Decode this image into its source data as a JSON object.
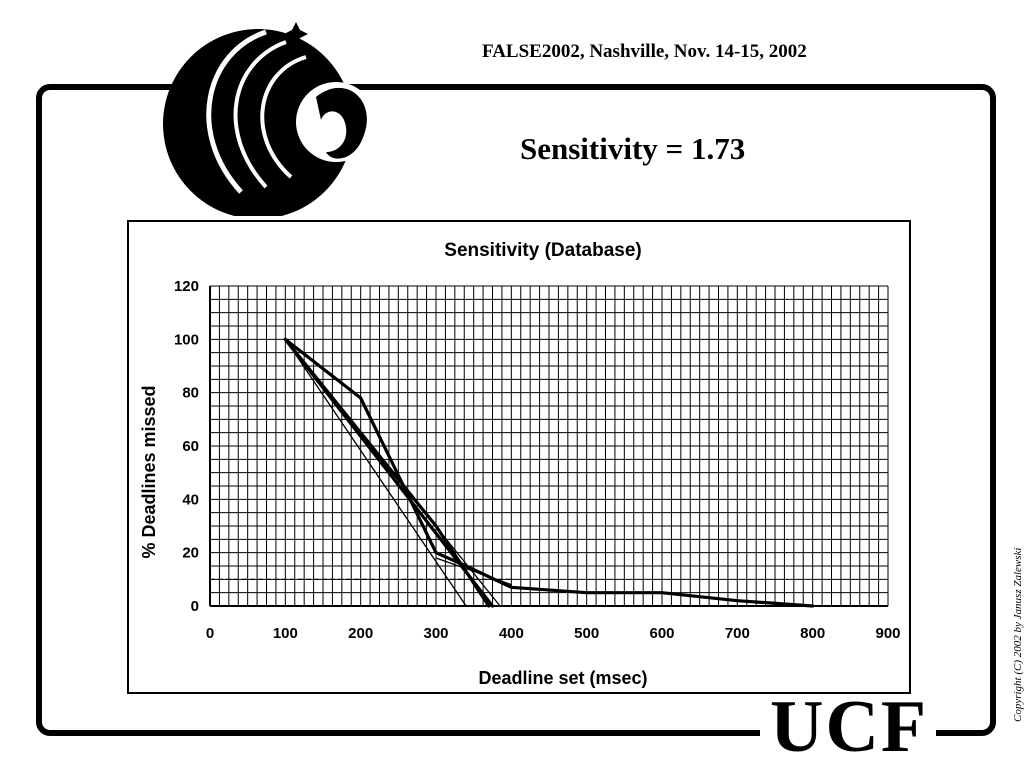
{
  "header": {
    "conference": "FALSE2002, Nashville,  Nov. 14-15, 2002",
    "slide_title": "Sensitivity = 1.73"
  },
  "footer": {
    "logo_text": "UCF",
    "copyright": "Copyright (C) 2002 by Janusz Zalewski"
  },
  "chart_data": {
    "type": "line",
    "title": "Sensitivity (Database)",
    "xlabel": "Deadline set (msec)",
    "ylabel": "% Deadlines missed",
    "xlim": [
      0,
      900
    ],
    "ylim": [
      0,
      120
    ],
    "xticks": [
      0,
      100,
      200,
      300,
      400,
      500,
      600,
      700,
      800,
      900
    ],
    "yticks": [
      0,
      20,
      40,
      60,
      80,
      100,
      120
    ],
    "grid": true,
    "series": [
      {
        "style": "thick",
        "x": [
          100,
          200,
          300,
          340,
          400,
          500,
          600,
          700,
          800
        ],
        "y": [
          100,
          78,
          20,
          15,
          7,
          5,
          5,
          2,
          0
        ]
      },
      {
        "style": "thick",
        "x": [
          100,
          200,
          300,
          370
        ],
        "y": [
          100,
          65,
          30,
          0
        ]
      },
      {
        "style": "thick",
        "x": [
          100,
          375
        ],
        "y": [
          100,
          0
        ]
      },
      {
        "style": "thin",
        "x": [
          100,
          340
        ],
        "y": [
          100,
          0
        ]
      },
      {
        "style": "thin",
        "x": [
          100,
          385
        ],
        "y": [
          100,
          0
        ]
      },
      {
        "style": "thin",
        "x": [
          300,
          400
        ],
        "y": [
          18,
          8
        ]
      }
    ],
    "reference_line": {
      "style": "dashed",
      "y": 10,
      "x": [
        0,
        400
      ]
    },
    "colors": {
      "line": "#000000",
      "grid": "#000000",
      "background": "#ffffff"
    }
  }
}
